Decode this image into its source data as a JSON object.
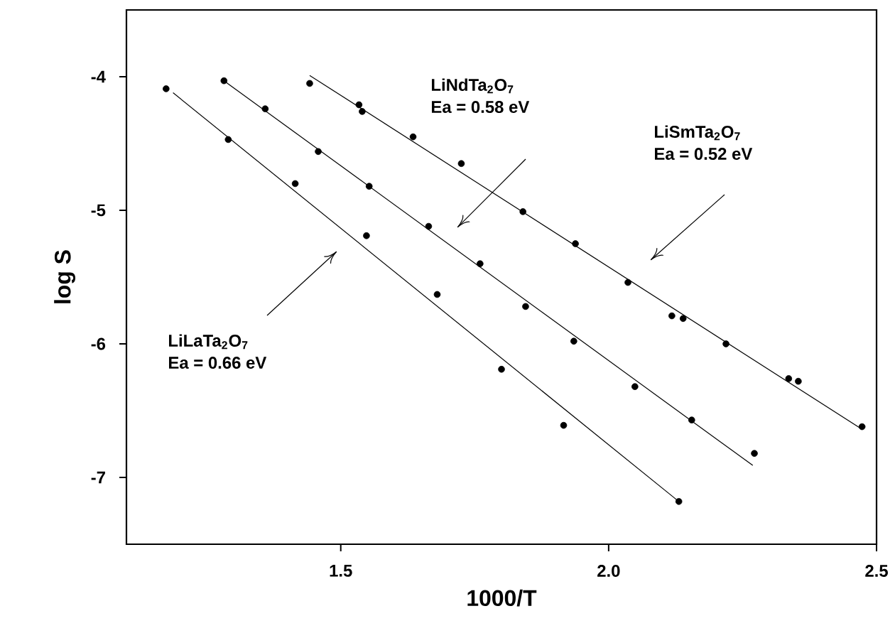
{
  "chart_data": {
    "type": "scatter",
    "xlabel": "1000/T",
    "ylabel": "log S",
    "xlim": [
      1.1,
      2.5
    ],
    "ylim": [
      -7.5,
      -3.5
    ],
    "xticks": [
      1.5,
      {
        "value": 2.0,
        "label": "2.0"
      },
      2.5
    ],
    "yticks": [
      -7,
      -6,
      -5,
      -4
    ],
    "marker": "circle",
    "series": [
      {
        "color": "#000000",
        "x": [
          1.174,
          1.29,
          1.415,
          1.548,
          1.68,
          1.8,
          1.916,
          2.131
        ],
        "values": [
          -4.09,
          -4.47,
          -4.8,
          -5.19,
          -5.63,
          -6.19,
          -6.61,
          -7.18
        ]
      },
      {
        "color": "#000000",
        "x": [
          1.282,
          1.359,
          1.458,
          1.553,
          1.664,
          1.76,
          1.845,
          1.935,
          2.049,
          2.155,
          2.272
        ],
        "values": [
          -4.03,
          -4.24,
          -4.56,
          -4.82,
          -5.12,
          -5.4,
          -5.72,
          -5.98,
          -6.32,
          -6.57,
          -6.82
        ]
      },
      {
        "color": "#000000",
        "x": [
          1.442,
          1.534,
          1.54,
          1.635,
          1.725,
          1.84,
          1.938,
          2.036,
          2.118,
          2.139,
          2.219,
          2.336,
          2.354,
          2.473
        ],
        "values": [
          -4.05,
          -4.21,
          -4.26,
          -4.45,
          -4.65,
          -5.01,
          -5.25,
          -5.54,
          -5.79,
          -5.81,
          -6.0,
          -6.26,
          -6.28,
          -6.62
        ]
      },
      {
        "type": "line",
        "marker": "none",
        "color": "#000000",
        "x": [
          1.187,
          2.131
        ],
        "values": [
          -4.12,
          -7.18
        ]
      },
      {
        "type": "line",
        "marker": "none",
        "color": "#000000",
        "x": [
          1.282,
          2.269
        ],
        "values": [
          -4.03,
          -6.91
        ]
      },
      {
        "type": "line",
        "marker": "none",
        "color": "#000000",
        "x": [
          1.442,
          2.473
        ],
        "values": [
          -3.99,
          -6.64
        ]
      }
    ],
    "annotations": [
      "LiLaTa$_{2}$O$_{7}$",
      "Ea = 0.66 eV",
      "LiNdTa$_{2}$O$_{7}$",
      "Ea = 0.58 eV",
      "LiSmTa$_{2}$O$_{7}$",
      "Ea = 0.52 eV"
    ]
  }
}
